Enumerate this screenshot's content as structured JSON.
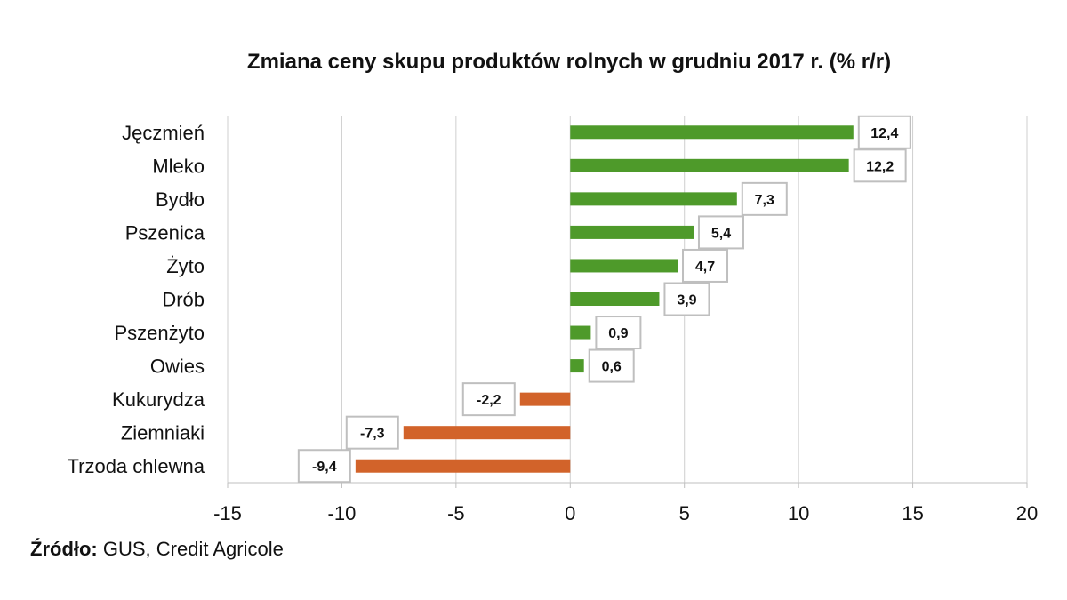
{
  "chart_data": {
    "type": "bar",
    "orientation": "horizontal",
    "title": "Zmiana ceny skupu produktów rolnych w grudniu 2017 r. (% r/r)",
    "categories": [
      "Jęczmień",
      "Mleko",
      "Bydło",
      "Pszenica",
      "Żyto",
      "Drób",
      "Pszenżyto",
      "Owies",
      "Kukurydza",
      "Ziemniaki",
      "Trzoda chlewna"
    ],
    "values": [
      12.4,
      12.2,
      7.3,
      5.4,
      4.7,
      3.9,
      0.9,
      0.6,
      -2.2,
      -7.3,
      -9.4
    ],
    "data_labels": [
      "12,4",
      "12,2",
      "7,3",
      "5,4",
      "4,7",
      "3,9",
      "0,9",
      "0,6",
      "-2,2",
      "-7,3",
      "-9,4"
    ],
    "x_ticks": [
      -15,
      -10,
      -5,
      0,
      5,
      10,
      15,
      20
    ],
    "xlim": [
      -15,
      20
    ],
    "xlabel": "",
    "ylabel": "",
    "grid": "vertical",
    "legend": "none",
    "colors": {
      "positive": "#4e9a2a",
      "negative": "#d2632a",
      "grid": "#cfcfcf",
      "label_box": "#bfbfbf"
    }
  },
  "source": {
    "label": "Źródło:",
    "text": " GUS, Credit Agricole"
  }
}
